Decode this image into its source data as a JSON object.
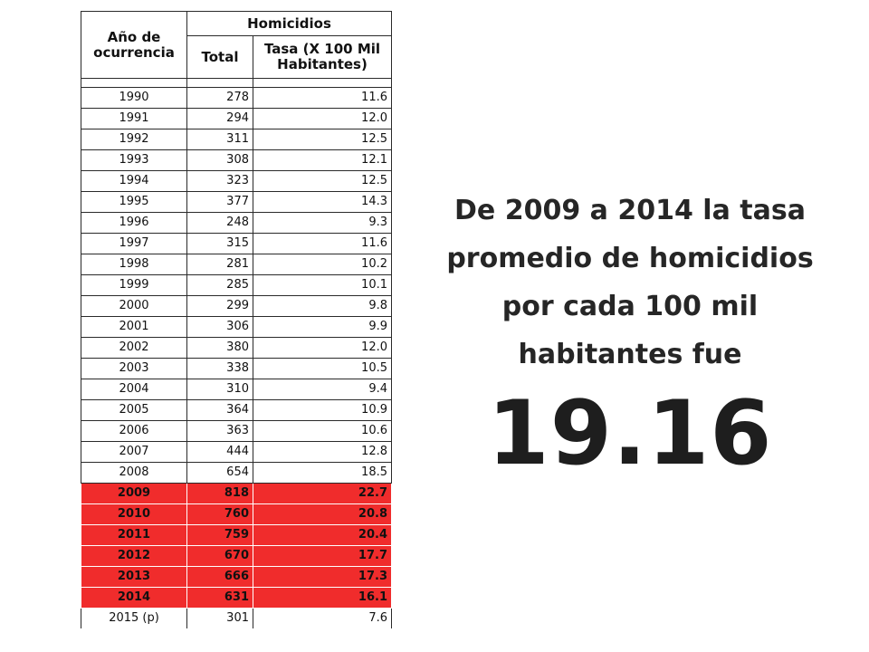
{
  "table": {
    "header": {
      "year": "Año de ocurrencia",
      "group": "Homicidios",
      "total": "Total",
      "rate": "Tasa (X 100 Mil Habitantes)"
    },
    "highlight_color": "#f02c2c",
    "highlight_years": [
      "2009",
      "2010",
      "2011",
      "2012",
      "2013",
      "2014"
    ],
    "rows": [
      {
        "year": "1990",
        "total": "278",
        "rate": "11.6"
      },
      {
        "year": "1991",
        "total": "294",
        "rate": "12.0"
      },
      {
        "year": "1992",
        "total": "311",
        "rate": "12.5"
      },
      {
        "year": "1993",
        "total": "308",
        "rate": "12.1"
      },
      {
        "year": "1994",
        "total": "323",
        "rate": "12.5"
      },
      {
        "year": "1995",
        "total": "377",
        "rate": "14.3"
      },
      {
        "year": "1996",
        "total": "248",
        "rate": "9.3"
      },
      {
        "year": "1997",
        "total": "315",
        "rate": "11.6"
      },
      {
        "year": "1998",
        "total": "281",
        "rate": "10.2"
      },
      {
        "year": "1999",
        "total": "285",
        "rate": "10.1"
      },
      {
        "year": "2000",
        "total": "299",
        "rate": "9.8"
      },
      {
        "year": "2001",
        "total": "306",
        "rate": "9.9"
      },
      {
        "year": "2002",
        "total": "380",
        "rate": "12.0"
      },
      {
        "year": "2003",
        "total": "338",
        "rate": "10.5"
      },
      {
        "year": "2004",
        "total": "310",
        "rate": "9.4"
      },
      {
        "year": "2005",
        "total": "364",
        "rate": "10.9"
      },
      {
        "year": "2006",
        "total": "363",
        "rate": "10.6"
      },
      {
        "year": "2007",
        "total": "444",
        "rate": "12.8"
      },
      {
        "year": "2008",
        "total": "654",
        "rate": "18.5"
      },
      {
        "year": "2009",
        "total": "818",
        "rate": "22.7"
      },
      {
        "year": "2010",
        "total": "760",
        "rate": "20.8"
      },
      {
        "year": "2011",
        "total": "759",
        "rate": "20.4"
      },
      {
        "year": "2012",
        "total": "670",
        "rate": "17.7"
      },
      {
        "year": "2013",
        "total": "666",
        "rate": "17.3"
      },
      {
        "year": "2014",
        "total": "631",
        "rate": "16.1"
      },
      {
        "year": "2015 (p)",
        "total": "301",
        "rate": "7.6"
      }
    ]
  },
  "headline": {
    "text": "De 2009 a 2014 la tasa promedio de homicidios por cada 100 mil habitantes fue",
    "value": "19.16"
  }
}
